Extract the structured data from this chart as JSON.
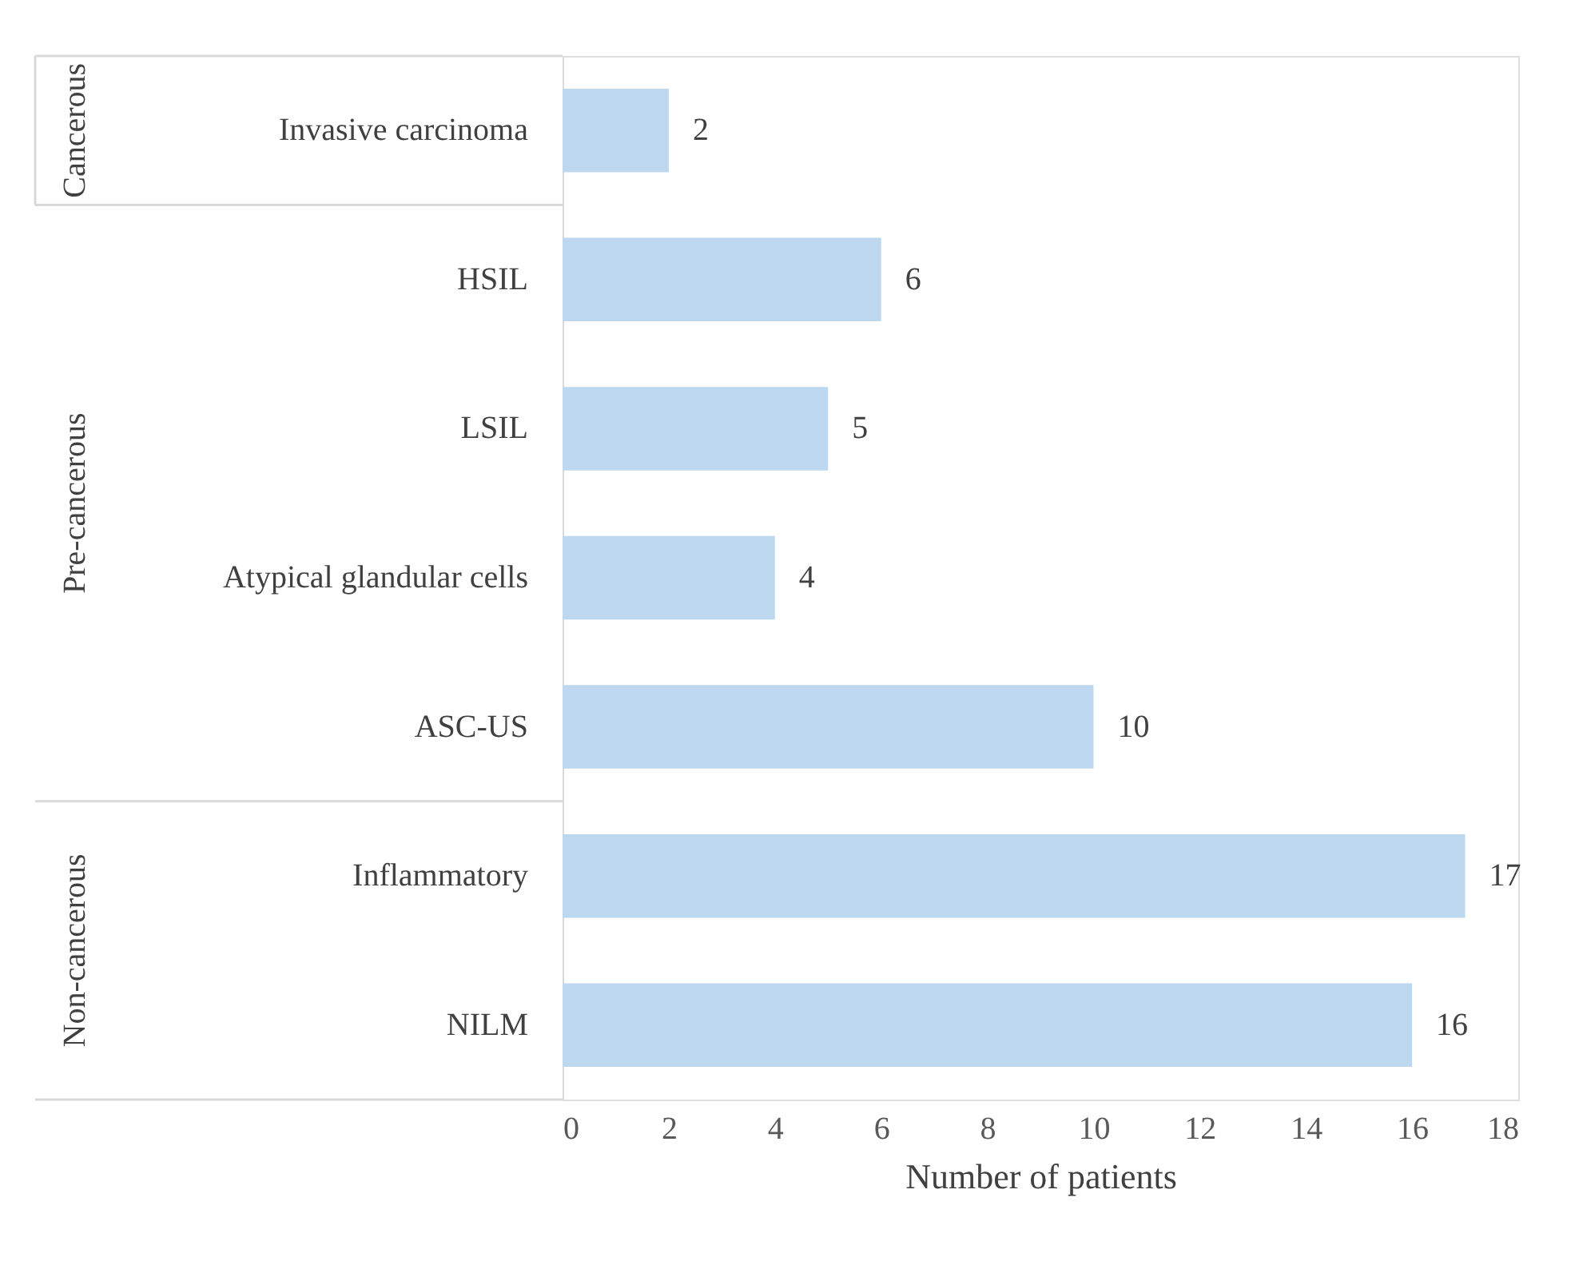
{
  "chart_data": {
    "type": "bar",
    "orientation": "horizontal",
    "categories": [
      "Invasive carcinoma",
      "HSIL",
      "LSIL",
      "Atypical glandular cells",
      "ASC-US",
      "Inflammatory",
      "NILM"
    ],
    "values": [
      2,
      6,
      5,
      4,
      10,
      17,
      16
    ],
    "color": "#bdd7ee",
    "xlabel": "Number of patients",
    "xlim": [
      0,
      18
    ],
    "xticks": [
      0,
      2,
      4,
      6,
      8,
      10,
      12,
      14,
      16,
      18
    ],
    "data_labels": true,
    "grid": false,
    "annotations": [
      "Cancerous",
      "Pre-cancerous",
      "Non-cancerous"
    ]
  }
}
